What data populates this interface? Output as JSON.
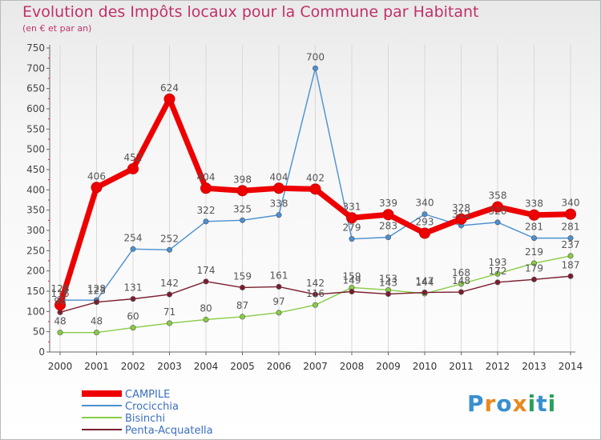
{
  "header": {
    "title": "Evolution des Impôts locaux pour la Commune par Habitant",
    "subtitle": "(en € et par an)"
  },
  "brand": {
    "logo_text": "Proxiti"
  },
  "chart_data": {
    "type": "line",
    "title": "Evolution des Impôts locaux pour la Commune par Habitant",
    "subtitle": "(en € et par an)",
    "x": [
      2000,
      2001,
      2002,
      2003,
      2004,
      2005,
      2006,
      2007,
      2008,
      2009,
      2010,
      2011,
      2012,
      2013,
      2014
    ],
    "x_tick_labels": [
      "2000",
      "2001",
      "2002",
      "2003",
      "2004",
      "2005",
      "2006",
      "2007",
      "2008",
      "2009",
      "2010",
      "2011",
      "2012",
      "2013",
      "2014"
    ],
    "ylim": [
      0,
      750
    ],
    "y_ticks": [
      0,
      50,
      100,
      150,
      200,
      250,
      300,
      350,
      400,
      450,
      500,
      550,
      600,
      650,
      700,
      750
    ],
    "grid": {
      "vertical": true,
      "horizontal": false
    },
    "legend_position": "bottom-left",
    "series": [
      {
        "name": "CAMPILE",
        "color": "#ee0000",
        "values": [
          116,
          406,
          452,
          624,
          404,
          398,
          404,
          402,
          331,
          339,
          293,
          328,
          358,
          338,
          340
        ]
      },
      {
        "name": "Crocicchia",
        "color": "#4a90d0",
        "values": [
          128,
          128,
          254,
          252,
          322,
          325,
          338,
          700,
          279,
          283,
          340,
          312,
          320,
          281,
          281
        ]
      },
      {
        "name": "Bisinchi",
        "color": "#88cc44",
        "values": [
          48,
          48,
          60,
          71,
          80,
          87,
          97,
          116,
          159,
          153,
          144,
          168,
          193,
          219,
          237
        ]
      },
      {
        "name": "Penta-Acquatella",
        "color": "#7a1e2e",
        "values": [
          98,
          123,
          131,
          142,
          174,
          159,
          161,
          142,
          149,
          143,
          147,
          148,
          172,
          179,
          187
        ]
      }
    ]
  }
}
